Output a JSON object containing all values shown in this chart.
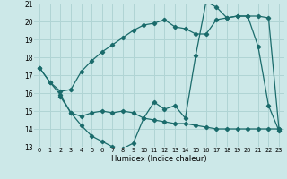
{
  "xlabel": "Humidex (Indice chaleur)",
  "bg_color": "#cce8e8",
  "grid_color": "#b0d4d4",
  "line_color": "#1a6b6b",
  "xlim": [
    -0.5,
    23.5
  ],
  "ylim": [
    13,
    21
  ],
  "yticks": [
    13,
    14,
    15,
    16,
    17,
    18,
    19,
    20,
    21
  ],
  "xticks": [
    0,
    1,
    2,
    3,
    4,
    5,
    6,
    7,
    8,
    9,
    10,
    11,
    12,
    13,
    14,
    15,
    16,
    17,
    18,
    19,
    20,
    21,
    22,
    23
  ],
  "series1_x": [
    0,
    1,
    2,
    3,
    4,
    5,
    6,
    7,
    8,
    9,
    10,
    11,
    12,
    13,
    14,
    15,
    16,
    17,
    18,
    19,
    20,
    21,
    22,
    23
  ],
  "series1_y": [
    17.4,
    16.6,
    16.1,
    16.2,
    17.2,
    17.8,
    18.3,
    18.7,
    19.1,
    19.5,
    19.8,
    19.9,
    20.1,
    19.7,
    19.6,
    19.3,
    19.3,
    20.1,
    20.2,
    20.3,
    20.3,
    20.3,
    20.2,
    14.0
  ],
  "series2_x": [
    0,
    1,
    2,
    3,
    4,
    5,
    6,
    7,
    8,
    9,
    10,
    11,
    12,
    13,
    14,
    15,
    16,
    17,
    18,
    19,
    20,
    21,
    22,
    23
  ],
  "series2_y": [
    17.4,
    16.6,
    15.9,
    14.9,
    14.2,
    13.6,
    13.3,
    13.0,
    12.9,
    13.2,
    14.6,
    15.5,
    15.1,
    15.3,
    14.6,
    18.1,
    21.1,
    20.8,
    20.2,
    20.3,
    20.3,
    18.6,
    15.3,
    13.9
  ],
  "series3_x": [
    2,
    3,
    4,
    5,
    6,
    7,
    8,
    9,
    10,
    11,
    12,
    13,
    14,
    15,
    16,
    17,
    18,
    19,
    20,
    21,
    22,
    23
  ],
  "series3_y": [
    15.8,
    14.9,
    14.7,
    14.9,
    15.0,
    14.9,
    15.0,
    14.9,
    14.6,
    14.5,
    14.4,
    14.3,
    14.3,
    14.2,
    14.1,
    14.0,
    14.0,
    14.0,
    14.0,
    14.0,
    14.0,
    14.0
  ]
}
